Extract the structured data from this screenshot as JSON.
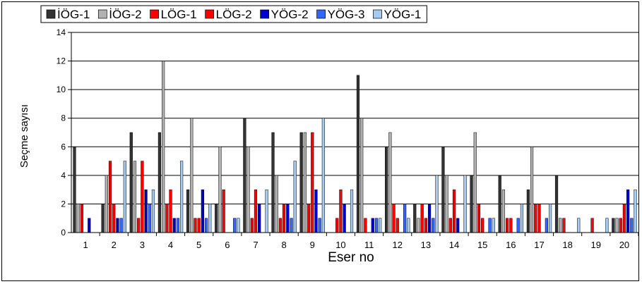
{
  "chart_data": {
    "type": "bar",
    "title": "",
    "xlabel": "Eser no",
    "ylabel": "Seçme sayısı",
    "ylim": [
      0,
      14
    ],
    "yticks": [
      0,
      2,
      4,
      6,
      8,
      10,
      12,
      14
    ],
    "grid": true,
    "legend_placement": "top",
    "categories": [
      "1",
      "2",
      "3",
      "4",
      "5",
      "6",
      "7",
      "8",
      "9",
      "10",
      "11",
      "12",
      "13",
      "14",
      "15",
      "16",
      "17",
      "18",
      "19",
      "20"
    ],
    "series": [
      {
        "name": "İÖG-1",
        "color": "#333333",
        "values": [
          6,
          2,
          7,
          7,
          3,
          2,
          8,
          7,
          7,
          0,
          11,
          6,
          2,
          6,
          4,
          4,
          3,
          4,
          0,
          1
        ]
      },
      {
        "name": "İÖG-2",
        "color": "#b2b2b2",
        "values": [
          2,
          4,
          5,
          12,
          8,
          6,
          6,
          4,
          7,
          0,
          8,
          7,
          1,
          4,
          7,
          3,
          6,
          1,
          0,
          1
        ]
      },
      {
        "name": "LÖG-1",
        "color": "#ff0000",
        "values": [
          2,
          5,
          1,
          2,
          1,
          3,
          1,
          1,
          2,
          1,
          1,
          2,
          2,
          1,
          2,
          1,
          2,
          1,
          1,
          1
        ]
      },
      {
        "name": "LÖG-2",
        "color": "#ff0000",
        "values": [
          0,
          2,
          5,
          3,
          1,
          0,
          3,
          2,
          7,
          3,
          0,
          1,
          1,
          3,
          1,
          1,
          2,
          0,
          0,
          2
        ]
      },
      {
        "name": "YÖG-2",
        "color": "#0000d0",
        "values": [
          1,
          1,
          3,
          1,
          3,
          0,
          2,
          2,
          3,
          2,
          1,
          0,
          2,
          1,
          0,
          0,
          0,
          0,
          0,
          3
        ]
      },
      {
        "name": "YÖG-3",
        "color": "#3366ff",
        "values": [
          0,
          1,
          2,
          1,
          1,
          1,
          0,
          1,
          1,
          0,
          1,
          2,
          1,
          0,
          1,
          1,
          1,
          0,
          0,
          1
        ]
      },
      {
        "name": "YÖG-1",
        "color": "#a6caf0",
        "values": [
          0,
          5,
          3,
          5,
          2,
          1,
          3,
          5,
          8,
          3,
          1,
          1,
          4,
          4,
          1,
          2,
          2,
          1,
          1,
          3
        ]
      }
    ]
  }
}
